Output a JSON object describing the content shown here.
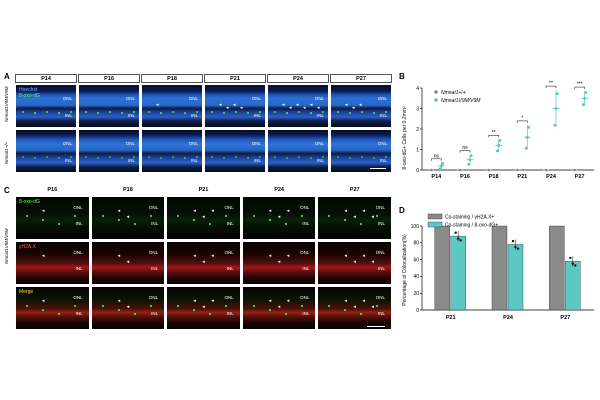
{
  "panels": {
    "A": {
      "letter": "A",
      "columns": [
        "P14",
        "P16",
        "P18",
        "P21",
        "P24",
        "P27"
      ],
      "rows": [
        "Nmnat1V9M/V9M",
        "Nmnat1+/+"
      ],
      "channels": [
        "Hoechst",
        "8-oxo-dG"
      ],
      "layer_labels": [
        "ONL",
        "INL"
      ]
    },
    "B": {
      "letter": "B",
      "ylabel": "8-oxo-dG+ Cells per 0.2mm²",
      "legend": [
        "Nmnat1+/+",
        "Nmnat1V9M/V9M"
      ],
      "sig": [
        "ns",
        "ns",
        "**",
        "*",
        "**",
        "***"
      ]
    },
    "C": {
      "letter": "C",
      "columns": [
        "P16",
        "P18",
        "P21",
        "P24",
        "P27"
      ],
      "row_label": "Nmnat1V9M/V9M",
      "rows": [
        "8-oxo-dG",
        "γH2A.X",
        "Merge"
      ],
      "layer_labels": [
        "ONL",
        "INL"
      ]
    },
    "D": {
      "letter": "D",
      "ylabel": "Percentage of Colocalization(%)",
      "legend": [
        "Co-staining / γH2A.X+",
        "Co-staining / 8-oxo-dG+"
      ]
    }
  },
  "colors": {
    "wt_gray": "#888888",
    "mut_teal": "#4fc7c0",
    "bar_gray": "#8a8a8a",
    "bar_teal": "#5bc8c2"
  },
  "chart_data": [
    {
      "type": "scatter",
      "categories": [
        "P14",
        "P16",
        "P18",
        "P21",
        "P24",
        "P27"
      ],
      "series": [
        {
          "name": "Nmnat1+/+",
          "values": [
            0,
            0,
            0,
            0,
            0,
            0
          ]
        },
        {
          "name": "Nmnat1V9M/V9M",
          "values": [
            0.2,
            0.5,
            1.2,
            1.6,
            3.0,
            3.5
          ]
        }
      ],
      "ylim": [
        0,
        4
      ],
      "yticks": [
        0,
        1,
        2,
        3,
        4
      ],
      "ylabel": "8-oxo-dG+ Cells per 0.2mm²"
    },
    {
      "type": "bar",
      "categories": [
        "P21",
        "P24",
        "P27"
      ],
      "series": [
        {
          "name": "Co-staining / γH2A.X+",
          "values": [
            100,
            100,
            100
          ]
        },
        {
          "name": "Co-staining / 8-oxo-dG+",
          "values": [
            88,
            78,
            58
          ]
        }
      ],
      "ylim": [
        0,
        100
      ],
      "yticks": [
        0,
        20,
        40,
        60,
        80,
        100
      ],
      "ylabel": "Percentage of Colocalization(%)"
    }
  ]
}
